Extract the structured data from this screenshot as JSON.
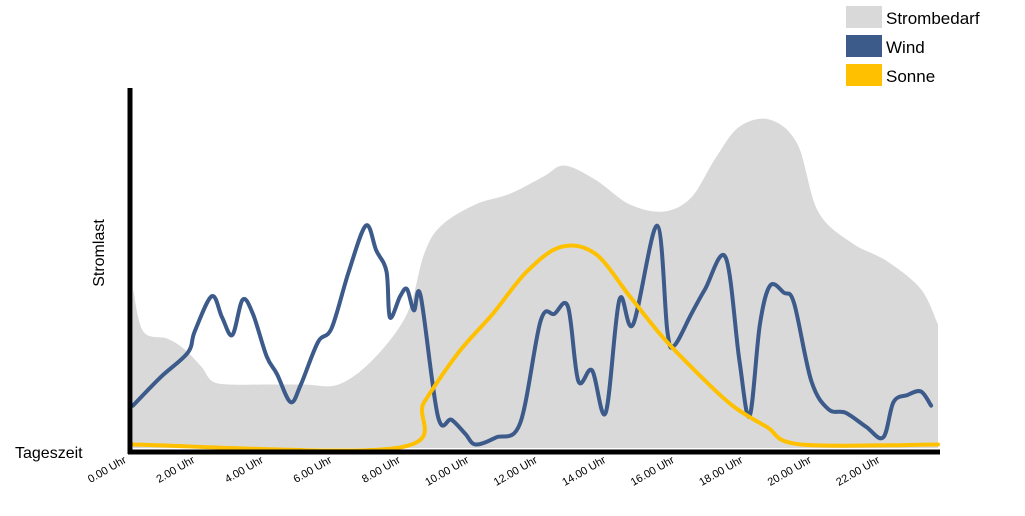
{
  "chart_data": {
    "type": "area",
    "title": "",
    "xlabel": "Tageszeit",
    "ylabel": "Stromlast",
    "xlim": [
      0,
      23.5
    ],
    "ylim": [
      0,
      100
    ],
    "x_ticks": [
      {
        "x": 0,
        "label": "0.00 Uhr"
      },
      {
        "x": 2,
        "label": "2.00 Uhr"
      },
      {
        "x": 4,
        "label": "4.00 Uhr"
      },
      {
        "x": 6,
        "label": "6.00 Uhr"
      },
      {
        "x": 8,
        "label": "8.00 Uhr"
      },
      {
        "x": 10,
        "label": "10.00 Uhr"
      },
      {
        "x": 12,
        "label": "12.00 Uhr"
      },
      {
        "x": 14,
        "label": "14.00 Uhr"
      },
      {
        "x": 16,
        "label": "16.00 Uhr"
      },
      {
        "x": 18,
        "label": "18.00 Uhr"
      },
      {
        "x": 20,
        "label": "20.00 Uhr"
      },
      {
        "x": 22,
        "label": "22.00 Uhr"
      }
    ],
    "legend_position": "top-right",
    "grid": false,
    "series": [
      {
        "name": "Strombedarf",
        "kind": "area",
        "color": "#d9d9d9",
        "points": [
          [
            0,
            45
          ],
          [
            0.3,
            33
          ],
          [
            1.0,
            31
          ],
          [
            1.5,
            28
          ],
          [
            2.0,
            23
          ],
          [
            2.3,
            19
          ],
          [
            2.8,
            18
          ],
          [
            4.0,
            18
          ],
          [
            5.0,
            18
          ],
          [
            6.0,
            18
          ],
          [
            7.0,
            25
          ],
          [
            8.0,
            38
          ],
          [
            8.5,
            55
          ],
          [
            9.0,
            63
          ],
          [
            10.0,
            69
          ],
          [
            11.0,
            72
          ],
          [
            12.0,
            77
          ],
          [
            12.6,
            80
          ],
          [
            13.5,
            76
          ],
          [
            14.5,
            69
          ],
          [
            15.5,
            67
          ],
          [
            16.3,
            71
          ],
          [
            17.0,
            82
          ],
          [
            17.7,
            91
          ],
          [
            18.6,
            93
          ],
          [
            19.4,
            86
          ],
          [
            20.0,
            67
          ],
          [
            21.0,
            58
          ],
          [
            22.0,
            53
          ],
          [
            23.0,
            45
          ],
          [
            23.5,
            35
          ]
        ]
      },
      {
        "name": "Wind",
        "kind": "line",
        "color": "#3c5a8a",
        "points": [
          [
            0,
            12
          ],
          [
            0.8,
            20
          ],
          [
            1.6,
            27
          ],
          [
            1.8,
            33
          ],
          [
            2.3,
            43
          ],
          [
            2.6,
            37
          ],
          [
            2.9,
            32
          ],
          [
            3.2,
            42
          ],
          [
            3.5,
            38
          ],
          [
            3.9,
            26
          ],
          [
            4.2,
            21
          ],
          [
            4.6,
            13
          ],
          [
            4.9,
            18
          ],
          [
            5.4,
            30
          ],
          [
            5.8,
            34
          ],
          [
            6.3,
            50
          ],
          [
            6.8,
            63
          ],
          [
            7.1,
            56
          ],
          [
            7.4,
            50
          ],
          [
            7.5,
            37
          ],
          [
            7.8,
            43
          ],
          [
            8.0,
            45
          ],
          [
            8.2,
            39
          ],
          [
            8.4,
            43
          ],
          [
            8.9,
            9
          ],
          [
            9.3,
            8
          ],
          [
            9.7,
            4
          ],
          [
            10.0,
            1
          ],
          [
            10.6,
            3
          ],
          [
            11.3,
            7
          ],
          [
            11.9,
            36
          ],
          [
            12.3,
            38
          ],
          [
            12.7,
            40
          ],
          [
            13.0,
            19
          ],
          [
            13.4,
            22
          ],
          [
            13.8,
            10
          ],
          [
            14.2,
            42
          ],
          [
            14.6,
            35
          ],
          [
            15.3,
            63
          ],
          [
            15.6,
            33
          ],
          [
            15.8,
            29
          ],
          [
            16.3,
            38
          ],
          [
            16.7,
            45
          ],
          [
            17.3,
            54
          ],
          [
            17.7,
            25
          ],
          [
            18.0,
            9
          ],
          [
            18.3,
            35
          ],
          [
            18.6,
            46
          ],
          [
            19.0,
            44
          ],
          [
            19.3,
            41
          ],
          [
            19.8,
            19
          ],
          [
            20.3,
            11
          ],
          [
            20.8,
            10
          ],
          [
            21.4,
            6
          ],
          [
            21.9,
            3
          ],
          [
            22.2,
            13
          ],
          [
            22.6,
            15
          ],
          [
            23.0,
            16
          ],
          [
            23.3,
            12
          ]
        ]
      },
      {
        "name": "Sonne",
        "kind": "line",
        "color": "#ffc000",
        "points": [
          [
            0,
            1
          ],
          [
            7.7,
            0
          ],
          [
            8.5,
            13
          ],
          [
            9.5,
            27
          ],
          [
            10.5,
            38
          ],
          [
            11.5,
            50
          ],
          [
            12.5,
            57
          ],
          [
            13.5,
            55
          ],
          [
            14.5,
            43
          ],
          [
            15.5,
            31
          ],
          [
            16.5,
            21
          ],
          [
            17.5,
            12
          ],
          [
            18.5,
            6
          ],
          [
            19.5,
            1
          ],
          [
            23.5,
            1
          ]
        ]
      }
    ]
  }
}
